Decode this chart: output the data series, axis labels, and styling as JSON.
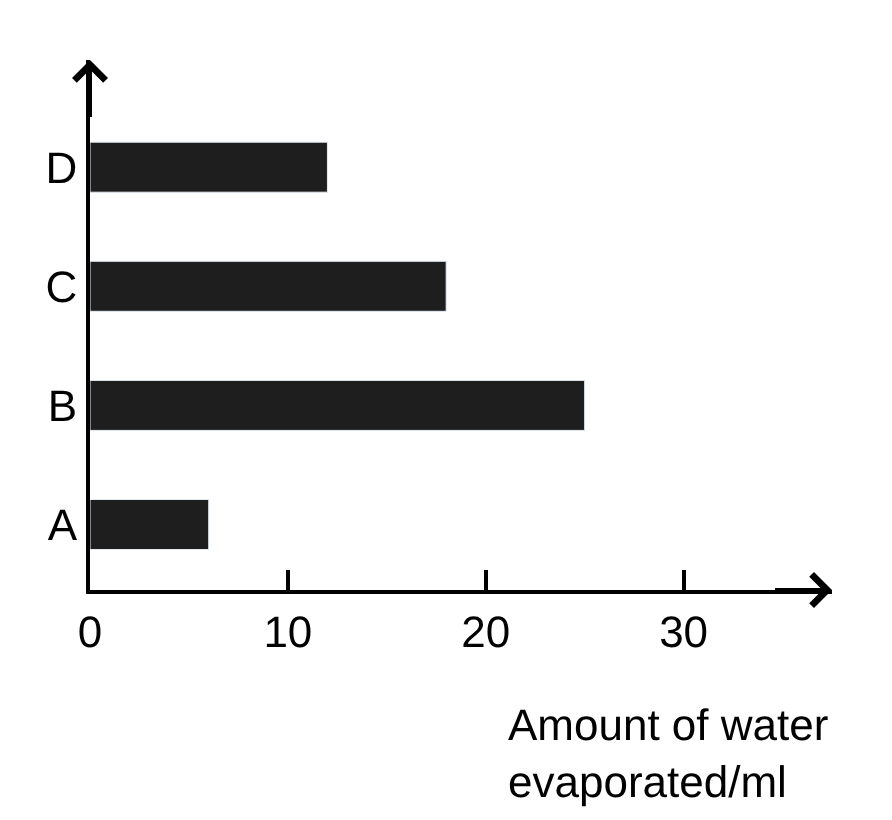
{
  "chart_data": {
    "type": "bar",
    "orientation": "horizontal",
    "xlabel": "Amount of water\nevaporated/ml",
    "categories": [
      "D",
      "C",
      "B",
      "A"
    ],
    "values": [
      12,
      18,
      25,
      6
    ],
    "color": "#1e1e1e",
    "xlim": [
      0,
      37.5
    ],
    "xticks": [
      0,
      10,
      20,
      30
    ],
    "legend": false
  }
}
